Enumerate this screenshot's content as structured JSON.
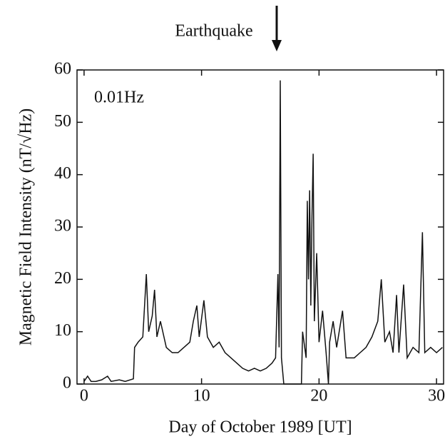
{
  "chart_data": {
    "type": "line",
    "x_label": "Day of October 1989 [UT]",
    "y_label": "Magnetic Field Intensity (nT/√Hz)",
    "annotations": [
      "Earthquake",
      "0.01Hz"
    ],
    "x": [
      0,
      0.3,
      0.6,
      1,
      1.5,
      2,
      2.3,
      3,
      3.5,
      4.2,
      4.3,
      4.6,
      5.0,
      5.3,
      5.5,
      5.8,
      6.0,
      6.2,
      6.5,
      7,
      7.5,
      8,
      8.5,
      9,
      9.3,
      9.6,
      9.8,
      10.2,
      10.5,
      11,
      11.5,
      12,
      12.5,
      13,
      13.5,
      14,
      14.5,
      15,
      15.5,
      16,
      16.3,
      16.5,
      16.6,
      16.7,
      16.8,
      17.0,
      18.0,
      18.5,
      18.6,
      18.9,
      19.0,
      19.1,
      19.2,
      19.3,
      19.4,
      19.5,
      19.6,
      19.8,
      20,
      20.3,
      20.6,
      20.8,
      20.9,
      21.2,
      21.5,
      22,
      22.3,
      23,
      23.5,
      24,
      24.5,
      25,
      25.3,
      25.6,
      26,
      26.3,
      26.6,
      26.8,
      27.2,
      27.5,
      28,
      28.5,
      28.8,
      29,
      29.5,
      30,
      30.5
    ],
    "series": [
      {
        "color": "#111111",
        "values": [
          0.5,
          1.5,
          0.5,
          0.5,
          0.8,
          1.5,
          0.5,
          0.8,
          0.5,
          1,
          7,
          8,
          9,
          21,
          10,
          13,
          18,
          9,
          12,
          7,
          6,
          6,
          7,
          8,
          12,
          15,
          9,
          16,
          9,
          7,
          8,
          6,
          5,
          4,
          3,
          2.5,
          3,
          2.5,
          3,
          4,
          5,
          21,
          7,
          58,
          5,
          0,
          0,
          0,
          10,
          5,
          35,
          20,
          37,
          15,
          32,
          44,
          12,
          25,
          8,
          14,
          6,
          0,
          8,
          12,
          7,
          14,
          5,
          5,
          6,
          7,
          9,
          12,
          20,
          8,
          10,
          6,
          17,
          6,
          19,
          5,
          7,
          6,
          29,
          6,
          7,
          6,
          7
        ]
      }
    ],
    "xlim": [
      -0.6,
      30.6
    ],
    "ylim": [
      0,
      60
    ],
    "xticks": [
      0,
      10,
      20,
      30
    ],
    "yticks": [
      0,
      10,
      20,
      30,
      40,
      50,
      60
    ]
  }
}
